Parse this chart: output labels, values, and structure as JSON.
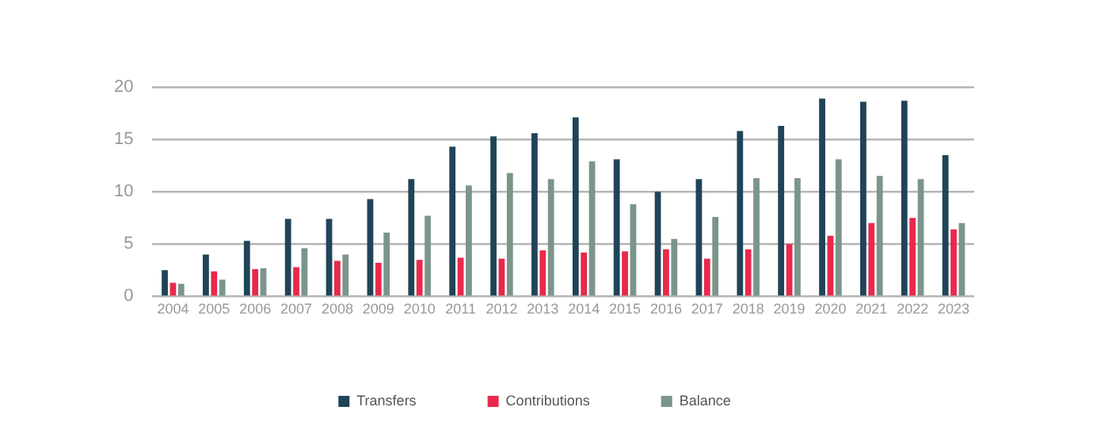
{
  "chart_data": {
    "type": "bar",
    "categories": [
      "2004",
      "2005",
      "2006",
      "2007",
      "2008",
      "2009",
      "2010",
      "2011",
      "2012",
      "2013",
      "2014",
      "2015",
      "2016",
      "2017",
      "2018",
      "2019",
      "2020",
      "2021",
      "2022",
      "2023"
    ],
    "series": [
      {
        "name": "Transfers",
        "color": "#1f4457",
        "values": [
          2.5,
          4.0,
          5.3,
          7.4,
          7.4,
          9.3,
          11.2,
          14.3,
          15.3,
          15.6,
          17.1,
          13.1,
          10.0,
          11.2,
          15.8,
          16.3,
          18.9,
          18.6,
          18.7,
          13.5
        ]
      },
      {
        "name": "Contributions",
        "color": "#e8294c",
        "values": [
          1.3,
          2.4,
          2.6,
          2.8,
          3.4,
          3.2,
          3.5,
          3.7,
          3.6,
          4.4,
          4.2,
          4.3,
          4.5,
          3.6,
          4.5,
          5.0,
          5.8,
          7.0,
          7.5,
          6.4
        ]
      },
      {
        "name": "Balance",
        "color": "#7b958a",
        "values": [
          1.2,
          1.6,
          2.7,
          4.6,
          4.0,
          6.1,
          7.7,
          10.6,
          11.8,
          11.2,
          12.9,
          8.8,
          5.5,
          7.6,
          11.3,
          11.3,
          13.1,
          11.5,
          11.2,
          7.0
        ]
      }
    ],
    "ylim": [
      0,
      20
    ],
    "yticks": [
      0,
      5,
      10,
      15,
      20
    ],
    "grid": "y",
    "legend": "bottom"
  }
}
